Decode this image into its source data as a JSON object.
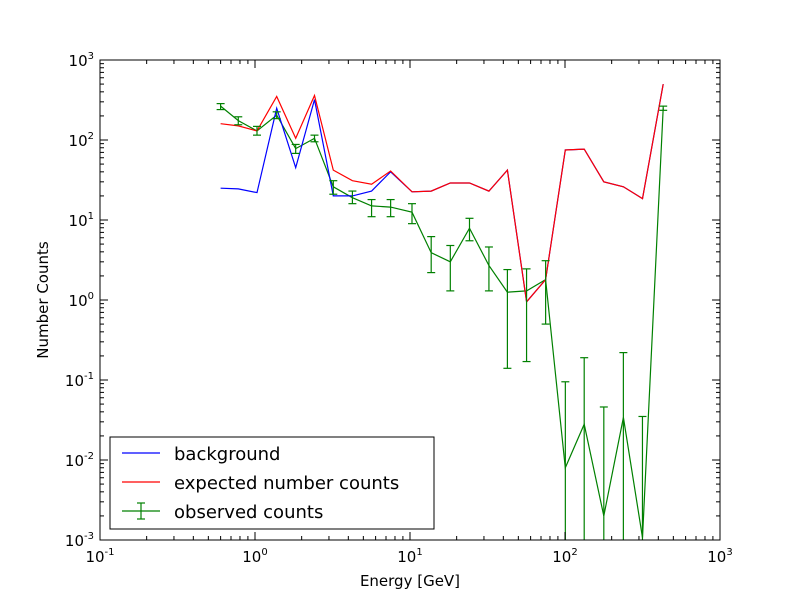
{
  "chart_data": {
    "type": "line",
    "title": "",
    "xlabel": "Energy [GeV]",
    "ylabel": "Number Counts",
    "xscale": "log",
    "yscale": "log",
    "xlim": [
      0.1,
      1000
    ],
    "ylim": [
      0.001,
      1000
    ],
    "grid": false,
    "legend_position": "lower-left",
    "x_ticks": [
      {
        "base": "10",
        "exp": "-1"
      },
      {
        "base": "10",
        "exp": "0"
      },
      {
        "base": "10",
        "exp": "1"
      },
      {
        "base": "10",
        "exp": "2"
      },
      {
        "base": "10",
        "exp": "3"
      }
    ],
    "y_ticks": [
      {
        "base": "10",
        "exp": "-3"
      },
      {
        "base": "10",
        "exp": "-2"
      },
      {
        "base": "10",
        "exp": "-1"
      },
      {
        "base": "10",
        "exp": "0"
      },
      {
        "base": "10",
        "exp": "1"
      },
      {
        "base": "10",
        "exp": "2"
      },
      {
        "base": "10",
        "exp": "3"
      }
    ],
    "x": [
      0.6,
      0.78,
      1.03,
      1.38,
      1.83,
      2.42,
      3.2,
      4.25,
      5.65,
      7.5,
      10.3,
      13.7,
      18.2,
      24.2,
      32.3,
      42.5,
      56.5,
      75.0,
      100.5,
      133.0,
      178.0,
      238.0,
      316.0,
      430.0
    ],
    "series": [
      {
        "name": "background",
        "color": "#0000ff",
        "values": [
          25,
          24.5,
          22,
          250,
          45,
          320,
          20,
          20,
          23,
          40,
          22.5,
          23,
          29,
          29,
          23,
          42,
          0.95,
          1.8,
          75,
          77,
          30,
          26,
          18.5,
          500
        ]
      },
      {
        "name": "expected number counts",
        "color": "#ff0000",
        "values": [
          160,
          150,
          130,
          350,
          105,
          360,
          42,
          31,
          28,
          41,
          22.5,
          23,
          29,
          29,
          23,
          42,
          0.95,
          1.8,
          75,
          77,
          30,
          26,
          18.5,
          500
        ]
      },
      {
        "name": "observed counts",
        "color": "#008000",
        "values": [
          265,
          175,
          130,
          205,
          78,
          105,
          26,
          19,
          15,
          14.5,
          12.5,
          3.9,
          3,
          7.9,
          2.7,
          1.25,
          1.3,
          1.8,
          0.008,
          0.028,
          0.002,
          0.034,
          0.00107,
          250
        ],
        "error_low": [
          240,
          155,
          115,
          185,
          68,
          95,
          21,
          16,
          11,
          11,
          9,
          2.2,
          1.3,
          5.5,
          1.3,
          0.14,
          0.17,
          0.5,
          0.001,
          0.001,
          0.001,
          0.001,
          0.001,
          235
        ],
        "error_high": [
          285,
          195,
          148,
          225,
          88,
          115,
          31,
          23,
          18,
          18,
          16,
          6.2,
          4.8,
          10.5,
          4.6,
          2.4,
          2.45,
          3.1,
          0.095,
          0.19,
          0.046,
          0.22,
          0.035,
          265
        ]
      }
    ]
  }
}
